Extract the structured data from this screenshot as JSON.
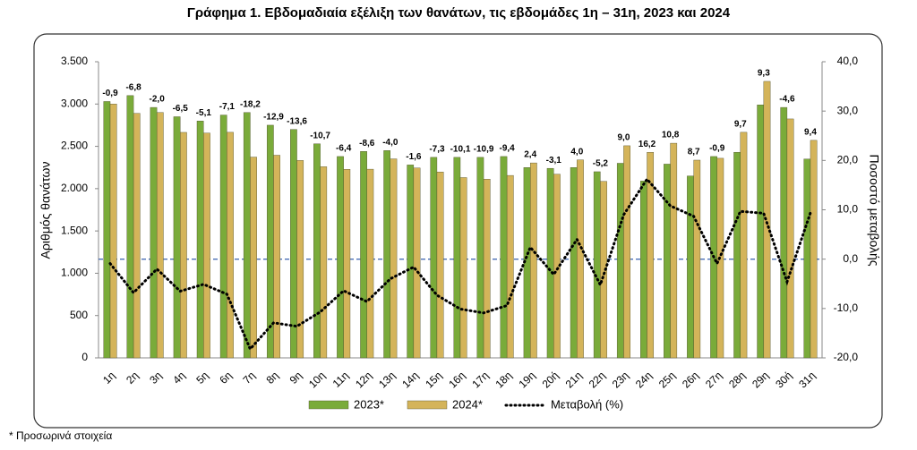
{
  "chart_data": {
    "type": "bar_line",
    "title": "Γράφημα 1.  Εβδομαδιαία εξέλιξη των θανάτων, τις εβδομάδες 1η – 31η, 2023 και 2024",
    "ylabel": "Αριθμός θανάτων",
    "y2label": "Ποσοστό μεταβολής",
    "footnote": "* Προσωρινά στοιχεία",
    "categories": [
      "1η",
      "2η",
      "3η",
      "4η",
      "5η",
      "6η",
      "7η",
      "8η",
      "9η",
      "10η",
      "11η",
      "12η",
      "13η",
      "14η",
      "15η",
      "16η",
      "17η",
      "18η",
      "19η",
      "20ή",
      "21η",
      "22η",
      "23η",
      "24η",
      "25η",
      "26η",
      "27η",
      "28η",
      "29η",
      "30ή",
      "31η"
    ],
    "series": [
      {
        "name": "2023*",
        "color": "#7aab3a",
        "type": "bar",
        "values": [
          3030,
          3100,
          2960,
          2850,
          2800,
          2870,
          2900,
          2750,
          2700,
          2530,
          2380,
          2440,
          2450,
          2280,
          2370,
          2370,
          2370,
          2380,
          2250,
          2240,
          2250,
          2200,
          2300,
          2090,
          2290,
          2150,
          2380,
          2430,
          2990,
          2960,
          2350
        ]
      },
      {
        "name": "2024*",
        "color": "#d4b45a",
        "type": "bar",
        "values": [
          3000,
          2890,
          2900,
          2665,
          2657,
          2666,
          2373,
          2395,
          2333,
          2259,
          2228,
          2230,
          2352,
          2244,
          2197,
          2131,
          2112,
          2156,
          2304,
          2171,
          2340,
          2086,
          2507,
          2429,
          2537,
          2337,
          2359,
          2666,
          3268,
          2824,
          2571
        ]
      },
      {
        "name": "Μεταβολή (%)",
        "color": "#000000",
        "type": "line",
        "axis": "y2",
        "values": [
          -0.9,
          -6.8,
          -2.0,
          -6.5,
          -5.1,
          -7.1,
          -18.2,
          -12.9,
          -13.6,
          -10.7,
          -6.4,
          -8.6,
          -4.0,
          -1.6,
          -7.3,
          -10.1,
          -10.9,
          -9.4,
          2.4,
          -3.1,
          4.0,
          -5.2,
          9.0,
          16.2,
          10.8,
          8.7,
          -0.9,
          9.7,
          9.3,
          -4.6,
          9.4
        ],
        "value_labels": [
          "-0,9",
          "-6,8",
          "-2,0",
          "-6,5",
          "-5,1",
          "-7,1",
          "-18,2",
          "-12,9",
          "-13,6",
          "-10,7",
          "-6,4",
          "-8,6",
          "-4,0",
          "-1,6",
          "-7,3",
          "-10,1",
          "-10,9",
          "-9,4",
          "2,4",
          "-3,1",
          "4,0",
          "-5,2",
          "9,0",
          "16,2",
          "10,8",
          "8,7",
          "-0,9",
          "9,7",
          "9,3",
          "-4,6",
          "9,4"
        ]
      }
    ],
    "ylim": [
      0,
      3500
    ],
    "yticks": [
      0,
      500,
      {
        "value": 1000,
        "label": "1.000"
      },
      {
        "value": 1500,
        "label": "1.500"
      },
      {
        "value": 2000,
        "label": "2.000"
      },
      {
        "value": 2500,
        "label": "2.500"
      },
      {
        "value": 3000,
        "label": "3.000"
      },
      {
        "value": 3500,
        "label": "3.500"
      }
    ],
    "y2lim": [
      -20,
      40
    ],
    "y2ticks": [
      {
        "value": -20,
        "label": "-20,0"
      },
      {
        "value": -10,
        "label": "-10,0"
      },
      {
        "value": 0,
        "label": "0,0"
      },
      {
        "value": 10,
        "label": "10,0"
      },
      {
        "value": 20,
        "label": "20,0"
      },
      {
        "value": 30,
        "label": "30,0"
      },
      {
        "value": 40,
        "label": "40,0"
      }
    ]
  }
}
